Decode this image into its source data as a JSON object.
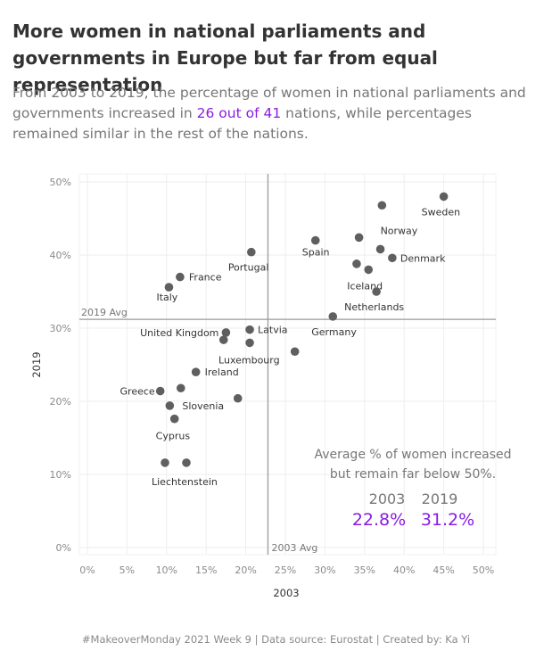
{
  "title": "More women in national parliaments and governments in Europe but far from equal representation",
  "subtitle": {
    "before": "From 2003 to 2019, the percentage of women in national parliaments and governments increased in ",
    "highlight": "26 out of 41",
    "after": " nations, while percentages remained similar in the rest of the nations."
  },
  "footer": "#MakeoverMonday 2021 Week 9 | Data source: Eurostat | Created by: Ka Yi",
  "colors": {
    "point": "#5f5f5f",
    "highlight": "#8a1be2",
    "grid": "#eeeeee",
    "ref_line": "#9a9a9a"
  },
  "chart_data": {
    "type": "scatter",
    "xlabel": "2003",
    "ylabel": "2019",
    "xlim": [
      -0.01,
      0.5
    ],
    "ylim": [
      -0.01,
      0.5
    ],
    "x_ticks": [
      0,
      0.05,
      0.1,
      0.15,
      0.2,
      0.25,
      0.3,
      0.35,
      0.4,
      0.45,
      0.5
    ],
    "x_tick_labels": [
      "0%",
      "5%",
      "10%",
      "15%",
      "20%",
      "25%",
      "30%",
      "35%",
      "40%",
      "45%",
      "50%"
    ],
    "y_ticks": [
      0,
      0.1,
      0.2,
      0.3,
      0.4,
      0.5
    ],
    "y_tick_labels": [
      "0%",
      "10%",
      "20%",
      "30%",
      "40%",
      "50%"
    ],
    "grid": true,
    "reference_lines": [
      {
        "axis": "x",
        "value": 0.228,
        "label": "2003 Avg"
      },
      {
        "axis": "y",
        "value": 0.312,
        "label": "2019 Avg"
      }
    ],
    "points": [
      {
        "x": 0.45,
        "y": 0.48,
        "label": "Sweden"
      },
      {
        "x": 0.372,
        "y": 0.468,
        "label": ""
      },
      {
        "x": 0.343,
        "y": 0.424,
        "label": "Norway"
      },
      {
        "x": 0.37,
        "y": 0.408,
        "label": ""
      },
      {
        "x": 0.385,
        "y": 0.396,
        "label": "Denmark"
      },
      {
        "x": 0.288,
        "y": 0.42,
        "label": "Spain"
      },
      {
        "x": 0.34,
        "y": 0.388,
        "label": ""
      },
      {
        "x": 0.355,
        "y": 0.38,
        "label": "Iceland"
      },
      {
        "x": 0.365,
        "y": 0.35,
        "label": "Netherlands"
      },
      {
        "x": 0.31,
        "y": 0.316,
        "label": "Germany"
      },
      {
        "x": 0.207,
        "y": 0.404,
        "label": "Portugal"
      },
      {
        "x": 0.117,
        "y": 0.37,
        "label": "France"
      },
      {
        "x": 0.103,
        "y": 0.356,
        "label": "Italy"
      },
      {
        "x": 0.205,
        "y": 0.298,
        "label": "Latvia"
      },
      {
        "x": 0.175,
        "y": 0.294,
        "label": "United Kingdom"
      },
      {
        "x": 0.172,
        "y": 0.284,
        "label": ""
      },
      {
        "x": 0.205,
        "y": 0.28,
        "label": "Luxembourg"
      },
      {
        "x": 0.262,
        "y": 0.268,
        "label": ""
      },
      {
        "x": 0.137,
        "y": 0.24,
        "label": "Ireland"
      },
      {
        "x": 0.092,
        "y": 0.214,
        "label": "Greece"
      },
      {
        "x": 0.118,
        "y": 0.218,
        "label": ""
      },
      {
        "x": 0.19,
        "y": 0.204,
        "label": ""
      },
      {
        "x": 0.104,
        "y": 0.194,
        "label": "Slovenia"
      },
      {
        "x": 0.11,
        "y": 0.176,
        "label": "Cyprus"
      },
      {
        "x": 0.098,
        "y": 0.116,
        "label": ""
      },
      {
        "x": 0.125,
        "y": 0.116,
        "label": "Liechtenstein"
      }
    ],
    "annotation": {
      "line1": "Average % of women increased",
      "line2": "but remain far below 50%.",
      "year_a": "2003",
      "year_b": "2019",
      "value_a": "22.8%",
      "value_b": "31.2%"
    }
  }
}
